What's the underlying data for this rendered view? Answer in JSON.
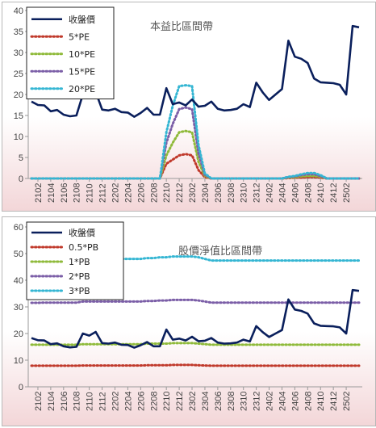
{
  "charts": [
    {
      "id": "pe",
      "chart_data": {
        "type": "line",
        "title": "本益比區間帶",
        "ylim": [
          0,
          40
        ],
        "yticks": [
          0,
          5,
          10,
          15,
          20,
          25,
          30,
          35,
          40
        ],
        "x_tick_labels": [
          "2102",
          "2104",
          "2106",
          "2108",
          "2110",
          "2112",
          "2202",
          "2204",
          "2206",
          "2208",
          "2210",
          "2212",
          "2302",
          "2304",
          "2306",
          "2308",
          "2310",
          "2312",
          "2402",
          "2404",
          "2406",
          "2408",
          "2410",
          "2412",
          "2502"
        ],
        "grid": false,
        "legend_position": "top-left",
        "series": [
          {
            "name": "收盤價",
            "color": "#0a1f5c",
            "style": "solid",
            "values": [
              18.3,
              17.5,
              17.4,
              16.0,
              16.3,
              15.2,
              14.8,
              15.0,
              20.0,
              19.2,
              20.6,
              16.4,
              16.2,
              16.6,
              15.8,
              15.7,
              14.7,
              15.6,
              16.8,
              15.2,
              15.2,
              21.5,
              17.7,
              18.1,
              17.4,
              18.8,
              17.1,
              17.3,
              18.3,
              16.6,
              16.2,
              16.3,
              16.6,
              17.7,
              17.0,
              22.8,
              20.5,
              18.7,
              20.0,
              21.3,
              32.8,
              29.0,
              28.5,
              27.5,
              23.8,
              22.9,
              22.8,
              22.7,
              22.3,
              20.0,
              36.3,
              36.0
            ]
          },
          {
            "name": "5*PE",
            "color": "#c0392b",
            "style": "dotted",
            "values": [
              0,
              0,
              0,
              0,
              0,
              0,
              0,
              0,
              0,
              0,
              0,
              0,
              0,
              0,
              0,
              0,
              0,
              0,
              0,
              0,
              0,
              3.5,
              4.5,
              5.5,
              5.8,
              5.5,
              2.0,
              0.3,
              0,
              0,
              0,
              0,
              0,
              0,
              0,
              0,
              0,
              0,
              0,
              0,
              0.1,
              0.2,
              0.2,
              0.3,
              0.3,
              0.2,
              0,
              0,
              0,
              0,
              0,
              0
            ]
          },
          {
            "name": "10*PE",
            "color": "#8fba3a",
            "style": "dotted",
            "values": [
              0,
              0,
              0,
              0,
              0,
              0,
              0,
              0,
              0,
              0,
              0,
              0,
              0,
              0,
              0,
              0,
              0,
              0,
              0,
              0,
              0,
              5.5,
              8.5,
              11.0,
              11.3,
              11.0,
              4.0,
              0.6,
              0,
              0,
              0,
              0,
              0,
              0,
              0,
              0,
              0,
              0,
              0,
              0,
              0.2,
              0.3,
              0.5,
              0.6,
              0.6,
              0.4,
              0,
              0,
              0,
              0,
              0,
              0
            ]
          },
          {
            "name": "15*PE",
            "color": "#7b5ea7",
            "style": "dotted",
            "values": [
              0,
              0,
              0,
              0,
              0,
              0,
              0,
              0,
              0,
              0,
              0,
              0,
              0,
              0,
              0,
              0,
              0,
              0,
              0,
              0,
              0,
              8.5,
              13.0,
              16.5,
              16.9,
              16.5,
              6.0,
              0.9,
              0,
              0,
              0,
              0,
              0,
              0,
              0,
              0,
              0,
              0,
              0,
              0,
              0.3,
              0.5,
              0.8,
              1.0,
              1.0,
              0.6,
              0,
              0,
              0,
              0,
              0,
              0
            ]
          },
          {
            "name": "20*PE",
            "color": "#35b6d3",
            "style": "dotted",
            "values": [
              0,
              0,
              0,
              0,
              0,
              0,
              0,
              0,
              0,
              0,
              0,
              0,
              0,
              0,
              0,
              0,
              0,
              0,
              0,
              0,
              0,
              11.0,
              17.3,
              22.0,
              22.2,
              22.0,
              8.0,
              1.2,
              0,
              0,
              0,
              0,
              0,
              0,
              0,
              0,
              0,
              0,
              0,
              0,
              0.4,
              0.6,
              1.0,
              1.3,
              1.3,
              0.8,
              0,
              0,
              0,
              0,
              0,
              0
            ]
          }
        ]
      }
    },
    {
      "id": "pb",
      "chart_data": {
        "type": "line",
        "title": "股價淨值比區間帶",
        "ylim": [
          0,
          60
        ],
        "yticks": [
          0,
          10,
          20,
          30,
          40,
          50,
          60
        ],
        "x_tick_labels": [
          "2102",
          "2104",
          "2106",
          "2108",
          "2110",
          "2112",
          "2202",
          "2204",
          "2206",
          "2208",
          "2210",
          "2212",
          "2302",
          "2304",
          "2306",
          "2308",
          "2310",
          "2312",
          "2402",
          "2404",
          "2406",
          "2408",
          "2410",
          "2412",
          "2502"
        ],
        "grid": false,
        "legend_position": "top-left",
        "series": [
          {
            "name": "收盤價",
            "color": "#0a1f5c",
            "style": "solid",
            "values": [
              18.3,
              17.5,
              17.4,
              16.0,
              16.3,
              15.2,
              14.8,
              15.0,
              20.0,
              19.2,
              20.6,
              16.4,
              16.2,
              16.6,
              15.8,
              15.7,
              14.7,
              15.6,
              16.8,
              15.2,
              15.2,
              21.5,
              17.7,
              18.1,
              17.4,
              18.8,
              17.1,
              17.3,
              18.3,
              16.6,
              16.2,
              16.3,
              16.6,
              17.7,
              17.0,
              22.8,
              20.5,
              18.7,
              20.0,
              21.3,
              32.8,
              29.0,
              28.5,
              27.5,
              23.8,
              22.9,
              22.8,
              22.7,
              22.3,
              20.0,
              36.3,
              36.0
            ]
          },
          {
            "name": "0.5*PB",
            "color": "#c0392b",
            "style": "dotted",
            "values": [
              7.9,
              7.9,
              7.9,
              7.9,
              7.9,
              7.9,
              7.9,
              7.9,
              8.0,
              8.0,
              8.0,
              8.0,
              8.0,
              8.0,
              8.0,
              8.0,
              8.0,
              8.0,
              8.1,
              8.1,
              8.1,
              8.1,
              8.2,
              8.2,
              8.2,
              8.2,
              8.1,
              8.0,
              7.9,
              7.9,
              7.9,
              7.9,
              7.9,
              7.9,
              7.9,
              7.9,
              7.9,
              7.9,
              7.9,
              7.9,
              7.9,
              7.9,
              7.9,
              7.9,
              7.9,
              7.9,
              7.9,
              7.9,
              7.9,
              7.9,
              7.9,
              7.9
            ]
          },
          {
            "name": "1*PB",
            "color": "#8fba3a",
            "style": "dotted",
            "values": [
              15.8,
              15.8,
              15.8,
              15.8,
              15.8,
              15.8,
              15.8,
              15.8,
              16.0,
              16.0,
              16.0,
              16.0,
              16.0,
              16.0,
              16.0,
              16.0,
              16.0,
              16.0,
              16.2,
              16.2,
              16.2,
              16.2,
              16.4,
              16.4,
              16.4,
              16.4,
              16.2,
              16.0,
              15.8,
              15.8,
              15.8,
              15.8,
              15.8,
              15.8,
              15.8,
              15.8,
              15.8,
              15.8,
              15.8,
              15.8,
              15.8,
              15.8,
              15.8,
              15.8,
              15.8,
              15.8,
              15.8,
              15.8,
              15.8,
              15.8,
              15.8,
              15.8
            ]
          },
          {
            "name": "2*PB",
            "color": "#7b5ea7",
            "style": "dotted",
            "values": [
              31.5,
              31.5,
              31.6,
              31.6,
              31.6,
              31.6,
              31.6,
              31.6,
              32.0,
              32.0,
              32.0,
              32.0,
              32.0,
              32.0,
              32.0,
              32.0,
              32.0,
              32.0,
              32.2,
              32.2,
              32.4,
              32.4,
              32.6,
              32.6,
              32.6,
              32.6,
              32.4,
              32.0,
              31.6,
              31.6,
              31.6,
              31.6,
              31.6,
              31.6,
              31.6,
              31.6,
              31.6,
              31.6,
              31.6,
              31.6,
              31.6,
              31.6,
              31.6,
              31.6,
              31.6,
              31.6,
              31.6,
              31.6,
              31.6,
              31.6,
              31.6,
              31.6
            ]
          },
          {
            "name": "3*PB",
            "color": "#35b6d3",
            "style": "dotted",
            "values": [
              47.3,
              47.3,
              47.4,
              47.4,
              47.4,
              47.4,
              47.4,
              47.4,
              48.0,
              48.0,
              48.0,
              48.0,
              48.0,
              48.0,
              48.0,
              48.0,
              48.0,
              48.0,
              48.3,
              48.3,
              48.6,
              48.6,
              48.9,
              48.9,
              48.9,
              48.9,
              48.6,
              48.0,
              47.4,
              47.4,
              47.4,
              47.4,
              47.4,
              47.4,
              47.4,
              47.4,
              47.4,
              47.4,
              47.4,
              47.4,
              47.4,
              47.4,
              47.4,
              47.4,
              47.4,
              47.4,
              47.4,
              47.4,
              47.4,
              47.4,
              47.4,
              47.4
            ]
          }
        ]
      }
    }
  ]
}
